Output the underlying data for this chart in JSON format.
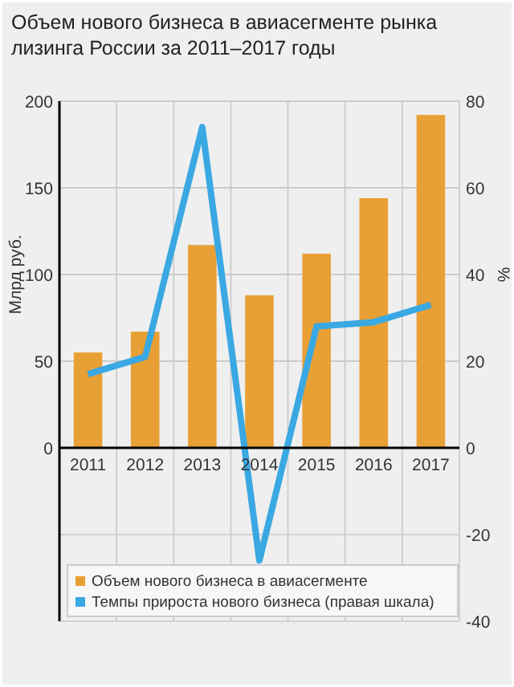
{
  "chart_data": {
    "type": "bar",
    "title": "Объем нового бизнеса в авиасегменте рынка лизинга России за 2011–2017 годы",
    "ylabel": "Млрд руб.",
    "y2label": "%",
    "categories": [
      "2011",
      "2012",
      "2013",
      "2014",
      "2015",
      "2016",
      "2017"
    ],
    "series": [
      {
        "name": "Объем нового бизнеса в авиасегменте",
        "color": "#e8a034",
        "values": [
          55,
          67,
          117,
          88,
          112,
          144,
          192
        ]
      },
      {
        "name": "Темпы прироста нового бизнеса (правая шкала)",
        "type": "line",
        "axis": "y2",
        "color": "#3aa8e2",
        "values": [
          17,
          21,
          74,
          -26,
          28,
          29,
          33
        ]
      }
    ],
    "ylim": [
      -100,
      200
    ],
    "yticks": [
      0,
      50,
      100,
      150,
      200
    ],
    "y2lim": [
      -40,
      80
    ],
    "y2ticks": [
      -40,
      -20,
      0,
      20,
      40,
      60,
      80
    ],
    "grid": true,
    "legend": "bottom"
  }
}
